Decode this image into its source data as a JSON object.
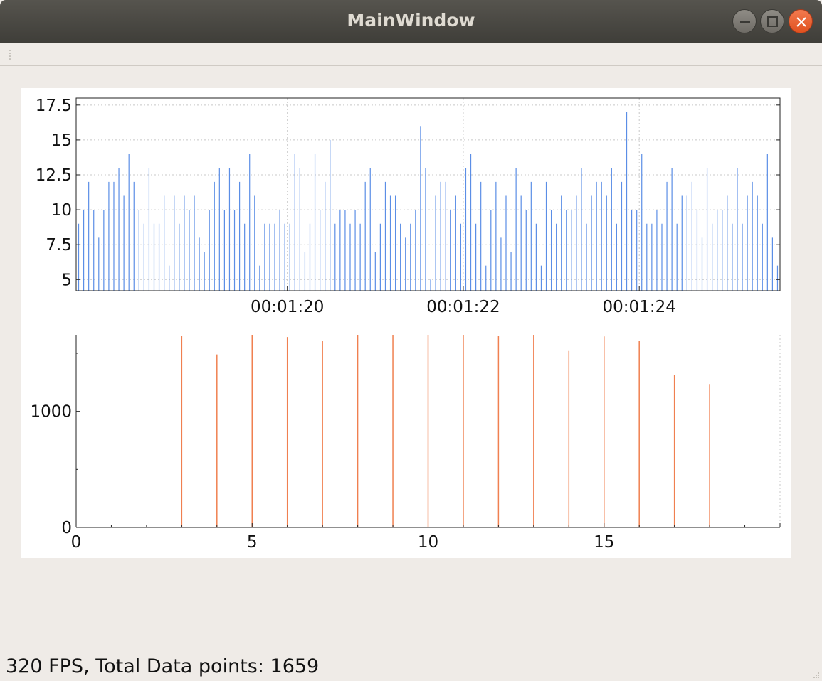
{
  "window": {
    "title": "MainWindow",
    "buttons": [
      {
        "name": "minimize-button",
        "icon": "minimize-icon"
      },
      {
        "name": "maximize-button",
        "icon": "maximize-icon"
      },
      {
        "name": "close-button",
        "icon": "close-icon"
      }
    ]
  },
  "status": {
    "text": "320 FPS, Total Data points: 1659"
  },
  "colors": {
    "top_series": "#5b8ee6",
    "bottom_series": "#f08050",
    "title_bar": "#4a4944",
    "close_button": "#e95420",
    "background": "#efebe7"
  },
  "chart_data": [
    {
      "type": "bar",
      "title": "",
      "xlabel": "",
      "ylabel": "",
      "x_axis": "time",
      "xlim": [
        "00:01:17.6",
        "00:01:25.6"
      ],
      "ylim": [
        4.2,
        18.0
      ],
      "grid": true,
      "x_ticks": [
        "00:01:20",
        "00:01:22",
        "00:01:24"
      ],
      "y_ticks": [
        "17.5",
        "15",
        "12.5",
        "10",
        "7.5",
        "5"
      ],
      "series": [
        {
          "values": [
            9,
            10,
            12,
            10,
            8,
            10,
            12,
            12,
            13,
            11,
            14,
            12,
            10,
            9,
            13,
            9,
            9,
            11,
            6,
            11,
            9,
            11,
            10,
            11,
            8,
            7,
            10,
            12,
            13,
            10,
            13,
            10,
            12,
            9,
            14,
            11,
            6,
            9,
            9,
            9,
            10,
            9,
            9,
            14,
            13,
            7,
            9,
            14,
            10,
            12,
            15,
            9,
            10,
            10,
            9,
            10,
            9,
            12,
            13,
            7,
            9,
            12,
            11,
            11,
            9,
            8,
            9,
            10,
            16,
            13,
            5,
            11,
            12,
            12,
            10,
            11,
            9,
            13,
            14,
            9,
            12,
            6,
            10,
            12,
            8,
            11,
            7,
            13,
            11,
            10,
            12,
            9,
            6,
            12,
            10,
            9,
            11,
            10,
            10,
            11,
            13,
            9,
            11,
            12,
            12,
            11,
            13,
            9,
            12,
            17,
            10,
            10,
            14,
            9,
            9,
            10,
            9,
            12,
            13,
            9,
            11,
            11,
            12,
            10,
            8,
            13,
            9,
            10,
            10,
            11,
            9,
            13,
            9,
            11,
            12,
            11,
            9,
            14,
            8,
            6
          ]
        }
      ]
    },
    {
      "type": "bar",
      "title": "",
      "xlabel": "",
      "ylabel": "",
      "xlim": [
        0,
        20
      ],
      "ylim": [
        0,
        1659
      ],
      "grid": false,
      "x_ticks": [
        "0",
        "5",
        "10",
        "15"
      ],
      "y_ticks": [
        "1000",
        "0"
      ],
      "series": [
        {
          "x": [
            3,
            4,
            5,
            6,
            7,
            8,
            9,
            10,
            11,
            12,
            13,
            14,
            15,
            16,
            17,
            18
          ],
          "values": [
            1650,
            1490,
            1659,
            1640,
            1610,
            1659,
            1659,
            1659,
            1659,
            1650,
            1659,
            1520,
            1645,
            1605,
            1310,
            1235
          ]
        }
      ]
    }
  ]
}
